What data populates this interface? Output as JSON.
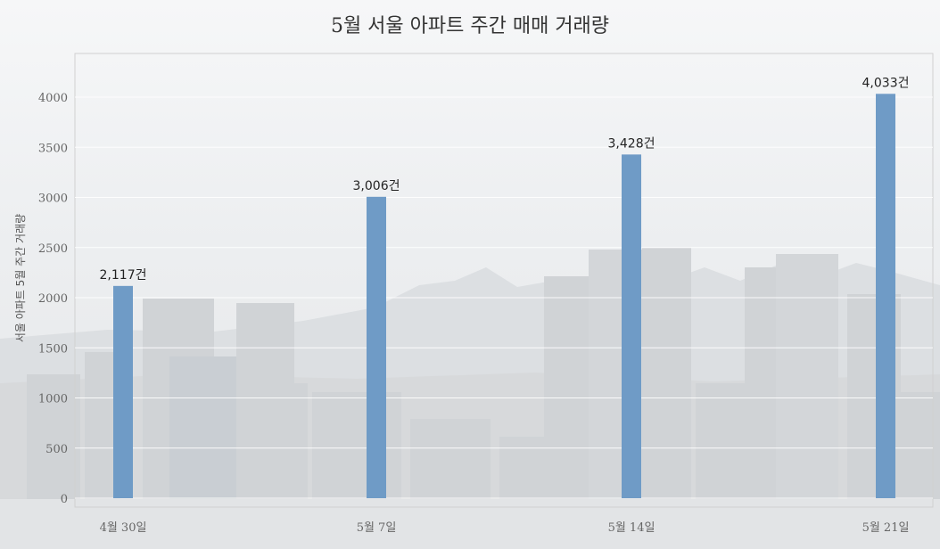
{
  "chart_data": {
    "type": "bar",
    "title": "5월 서울 아파트 주간 매매 거래량",
    "xlabel": "",
    "ylabel": "서울 아파트 5월 주간 거래량",
    "categories": [
      "4월 30일",
      "5월 7일",
      "5월 14일",
      "5월 21일"
    ],
    "values": [
      2117,
      3006,
      3428,
      4033
    ],
    "data_labels": [
      "2,117건",
      "3,006건",
      "3,428건",
      "4,033건"
    ],
    "yticks": [
      "0",
      "500",
      "1000",
      "1500",
      "2000",
      "2500",
      "3000",
      "3500",
      "4000"
    ],
    "ylim": [
      0,
      4400
    ],
    "grid": true,
    "legend": "none",
    "colors": {
      "bar": "#6f9bc6",
      "grid": "#ffffff",
      "axis": "#c8c8c8",
      "plot_border": "#d0d0d0"
    }
  }
}
